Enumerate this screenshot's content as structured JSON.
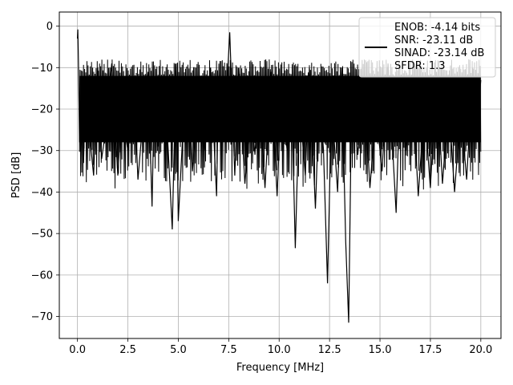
{
  "chart_data": {
    "type": "line",
    "xlabel": "Frequency [MHz]",
    "ylabel": "PSD [dB]",
    "xlim": [
      -0.9,
      21.0
    ],
    "ylim": [
      -75.3,
      3.4
    ],
    "x_ticks": [
      0.0,
      2.5,
      5.0,
      7.5,
      10.0,
      12.5,
      15.0,
      17.5,
      20.0
    ],
    "x_tick_labels": [
      "0.0",
      "2.5",
      "5.0",
      "7.5",
      "10.0",
      "12.5",
      "15.0",
      "17.5",
      "20.0"
    ],
    "y_ticks": [
      0,
      -10,
      -20,
      -30,
      -40,
      -50,
      -60,
      -70
    ],
    "y_tick_labels": [
      "0",
      "−10",
      "−20",
      "−30",
      "−40",
      "−50",
      "−60",
      "−70"
    ],
    "grid": true,
    "legend_position": "top-right",
    "series": [
      {
        "color": "#000000",
        "x": [
          0.0,
          0.02,
          0.05,
          0.1,
          0.15,
          0.2,
          0.25,
          0.3,
          0.35,
          0.5,
          0.6,
          0.8,
          1.0,
          1.2,
          1.4,
          1.7,
          2.0,
          2.2,
          2.5,
          2.8,
          3.0,
          3.2,
          3.5,
          3.7,
          3.8,
          4.0,
          4.3,
          4.5,
          4.7,
          4.9,
          5.0,
          5.2,
          5.5,
          5.7,
          6.0,
          6.3,
          6.6,
          6.9,
          7.0,
          7.3,
          7.55,
          7.8,
          8.0,
          8.3,
          8.6,
          8.8,
          9.0,
          9.3,
          9.6,
          9.9,
          10.1,
          10.4,
          10.6,
          10.8,
          11.0,
          11.3,
          11.5,
          11.8,
          12.0,
          12.2,
          12.4,
          12.6,
          12.9,
          13.1,
          13.3,
          13.45,
          13.6,
          13.9,
          14.2,
          14.5,
          14.8,
          15.1,
          15.4,
          15.8,
          16.0,
          16.3,
          16.6,
          16.9,
          17.2,
          17.5,
          17.8,
          18.1,
          18.4,
          18.7,
          19.0,
          19.3,
          19.6,
          19.8,
          20.0
        ],
        "values": [
          -3,
          -0.8,
          -9,
          -28,
          -22,
          -18,
          -14,
          -33,
          -25,
          -12,
          -26,
          -36,
          -10,
          -32,
          -25,
          -9,
          -36,
          -20,
          -30,
          -14,
          -37,
          -25,
          -11,
          -43.5,
          -18,
          -29,
          -12,
          -30,
          -49,
          -9,
          -47,
          -28,
          -13,
          -35,
          -16,
          -30,
          -10,
          -41,
          -12,
          -25,
          -1.5,
          -36,
          -10,
          -38,
          -20,
          -31,
          -14,
          -39,
          -11,
          -41,
          -17,
          -30,
          -12,
          -53.5,
          -18,
          -36,
          -10,
          -44,
          -16,
          -30,
          -62,
          -18,
          -40,
          -10,
          -52,
          -71.5,
          -15,
          -31,
          -12,
          -39,
          -20,
          -35,
          -9,
          -45,
          -14,
          -30,
          -13,
          -41,
          -19,
          -39,
          -11,
          -38,
          -18,
          -40,
          -20,
          -37,
          -10,
          -25,
          -13
        ]
      }
    ],
    "legend": [
      "ENOB: -4.14 bits",
      "SNR: -23.11 dB",
      "SINAD: -23.14 dB",
      "SFDR: 1.3"
    ]
  }
}
